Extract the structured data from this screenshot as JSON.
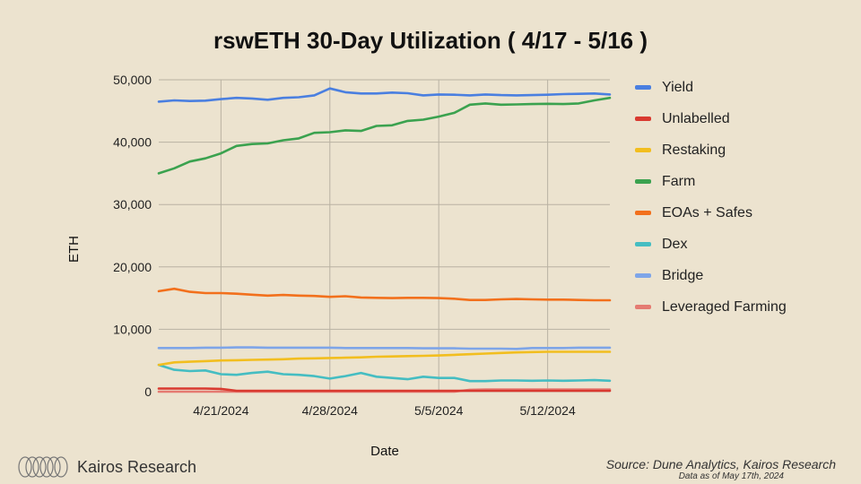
{
  "chart_data": {
    "type": "line",
    "title": "rswETH 30-Day Utilization ( 4/17 - 5/16 )",
    "xlabel": "Date",
    "ylabel": "ETH",
    "ylim": [
      0,
      50000
    ],
    "yticks": [
      0,
      10000,
      20000,
      30000,
      40000,
      50000
    ],
    "ytick_labels": [
      "0",
      "10,000",
      "20,000",
      "30,000",
      "40,000",
      "50,000"
    ],
    "x": [
      "2024-04-17",
      "2024-04-18",
      "2024-04-19",
      "2024-04-20",
      "2024-04-21",
      "2024-04-22",
      "2024-04-23",
      "2024-04-24",
      "2024-04-25",
      "2024-04-26",
      "2024-04-27",
      "2024-04-28",
      "2024-04-29",
      "2024-04-30",
      "2024-05-01",
      "2024-05-02",
      "2024-05-03",
      "2024-05-04",
      "2024-05-05",
      "2024-05-06",
      "2024-05-07",
      "2024-05-08",
      "2024-05-09",
      "2024-05-10",
      "2024-05-11",
      "2024-05-12",
      "2024-05-13",
      "2024-05-14",
      "2024-05-15",
      "2024-05-16"
    ],
    "xticks": [
      "2024-04-21",
      "2024-04-28",
      "2024-05-05",
      "2024-05-12"
    ],
    "xtick_labels": [
      "4/21/2024",
      "4/28/2024",
      "5/5/2024",
      "5/12/2024"
    ],
    "grid": true,
    "legend_position": "right",
    "series": [
      {
        "name": "Yield",
        "color": "#4a7fe0",
        "values": [
          46500,
          46700,
          46600,
          46650,
          46900,
          47100,
          47000,
          46800,
          47100,
          47200,
          47500,
          48600,
          48000,
          47800,
          47800,
          47950,
          47850,
          47500,
          47650,
          47600,
          47500,
          47650,
          47550,
          47500,
          47550,
          47600,
          47700,
          47750,
          47800,
          47650
        ]
      },
      {
        "name": "Unlabelled",
        "color": "#d93a30",
        "values": [
          500,
          500,
          500,
          500,
          450,
          150,
          150,
          150,
          150,
          150,
          150,
          150,
          150,
          150,
          150,
          150,
          150,
          150,
          150,
          150,
          150,
          150,
          150,
          150,
          150,
          150,
          150,
          150,
          150,
          150
        ]
      },
      {
        "name": "Restaking",
        "color": "#f2be1f",
        "values": [
          4300,
          4700,
          4800,
          4900,
          5000,
          5050,
          5100,
          5150,
          5200,
          5300,
          5350,
          5400,
          5450,
          5500,
          5600,
          5650,
          5700,
          5750,
          5800,
          5900,
          6000,
          6100,
          6200,
          6300,
          6350,
          6400,
          6400,
          6400,
          6400,
          6400
        ]
      },
      {
        "name": "Farm",
        "color": "#3ba24f",
        "values": [
          35000,
          35800,
          36900,
          37400,
          38200,
          39400,
          39700,
          39800,
          40300,
          40600,
          41500,
          41600,
          41900,
          41800,
          42600,
          42700,
          43400,
          43600,
          44100,
          44700,
          46000,
          46200,
          46000,
          46050,
          46100,
          46150,
          46100,
          46200,
          46700,
          47100
        ]
      },
      {
        "name": "EOAs + Safes",
        "color": "#f2701c",
        "values": [
          16100,
          16500,
          16000,
          15800,
          15800,
          15700,
          15550,
          15400,
          15500,
          15400,
          15350,
          15200,
          15300,
          15100,
          15050,
          15000,
          15050,
          15050,
          15000,
          14900,
          14700,
          14700,
          14800,
          14850,
          14800,
          14750,
          14750,
          14700,
          14650,
          14650
        ]
      },
      {
        "name": "Dex",
        "color": "#45bdc2",
        "values": [
          4300,
          3500,
          3300,
          3400,
          2800,
          2700,
          3000,
          3200,
          2800,
          2700,
          2500,
          2100,
          2500,
          3000,
          2400,
          2200,
          2000,
          2400,
          2200,
          2200,
          1700,
          1700,
          1800,
          1800,
          1750,
          1800,
          1750,
          1800,
          1850,
          1750
        ]
      },
      {
        "name": "Bridge",
        "color": "#7ea5e8",
        "values": [
          7000,
          7000,
          7000,
          7050,
          7050,
          7100,
          7100,
          7050,
          7050,
          7050,
          7050,
          7050,
          7000,
          7000,
          7000,
          7000,
          7000,
          6950,
          6950,
          6950,
          6900,
          6900,
          6900,
          6850,
          7000,
          7000,
          7000,
          7050,
          7050,
          7050
        ]
      },
      {
        "name": "Leveraged Farming",
        "color": "#e57b72",
        "values": [
          0,
          0,
          0,
          0,
          0,
          0,
          0,
          0,
          0,
          0,
          0,
          0,
          0,
          0,
          0,
          0,
          0,
          0,
          0,
          0,
          300,
          350,
          350,
          350,
          350,
          350,
          350,
          350,
          350,
          350
        ]
      }
    ]
  },
  "footer": {
    "brand": "Kairos Research",
    "source": "Source: Dune Analytics, Kairos Research",
    "as_of": "Data as of May 17th, 2024"
  }
}
